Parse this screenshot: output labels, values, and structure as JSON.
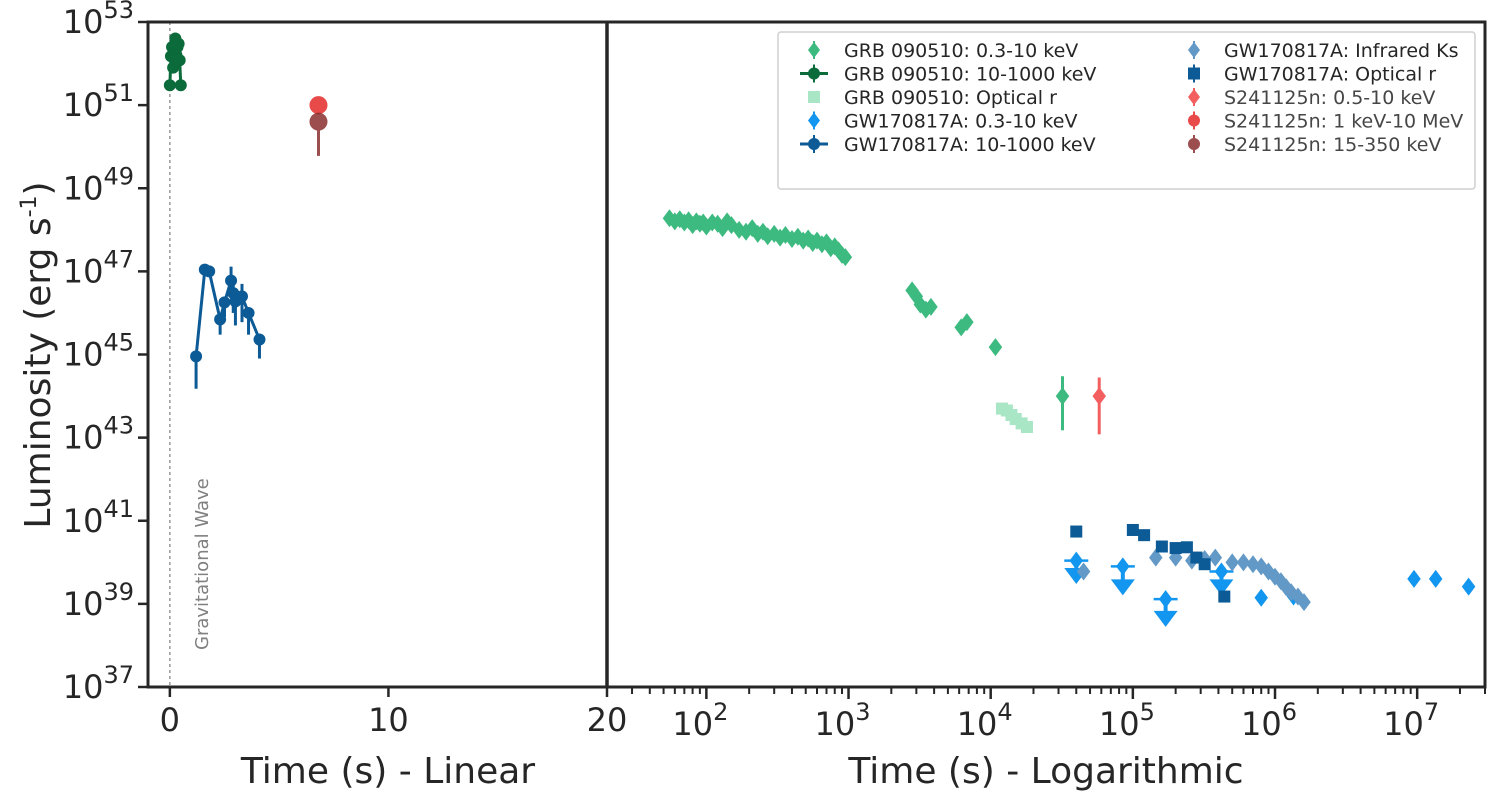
{
  "chart_data": {
    "type": "scatter",
    "ylabel": "Luminosity (erg s",
    "ylabel_exp": "-1",
    "ylabel_close": ")",
    "ylim": [
      1e+37,
      1e+53
    ],
    "yscale": "log",
    "yticks": [
      {
        "base": "10",
        "exp": "53"
      },
      {
        "base": "10",
        "exp": "51"
      },
      {
        "base": "10",
        "exp": "49"
      },
      {
        "base": "10",
        "exp": "47"
      },
      {
        "base": "10",
        "exp": "45"
      },
      {
        "base": "10",
        "exp": "43"
      },
      {
        "base": "10",
        "exp": "41"
      },
      {
        "base": "10",
        "exp": "39"
      },
      {
        "base": "10",
        "exp": "37"
      }
    ],
    "left_panel": {
      "xlabel": "Time (s) - Linear",
      "xlim": [
        -1,
        20
      ],
      "xticks": [
        "0",
        "10",
        "20"
      ],
      "vline_x": 0,
      "vline_label": "Gravitational Wave"
    },
    "right_panel": {
      "xlabel": "Time (s) - Logarithmic",
      "xlim": [
        20,
        30000000
      ],
      "xscale": "log",
      "xticks": [
        {
          "base": "10",
          "exp": "2"
        },
        {
          "base": "10",
          "exp": "3"
        },
        {
          "base": "10",
          "exp": "4"
        },
        {
          "base": "10",
          "exp": "5"
        },
        {
          "base": "10",
          "exp": "6"
        },
        {
          "base": "10",
          "exp": "7"
        }
      ]
    },
    "series": [
      {
        "name": "GRB 090510: 0.3-10 keV",
        "color": "#3dba80",
        "marker": "diamond",
        "panel": "log",
        "x": [
          55,
          60,
          65,
          70,
          75,
          80,
          85,
          90,
          95,
          100,
          110,
          120,
          130,
          140,
          150,
          170,
          190,
          210,
          230,
          250,
          270,
          300,
          330,
          360,
          400,
          440,
          480,
          520,
          560,
          600,
          650,
          700,
          750,
          800,
          850,
          900,
          950,
          2800,
          3000,
          3200,
          3500,
          3800,
          6200,
          6800,
          10800,
          32000
        ],
        "y": [
          1.9e+48,
          1.6e+48,
          1.8e+48,
          1.5e+48,
          1.7e+48,
          1.3e+48,
          1.6e+48,
          1.4e+48,
          1.5e+48,
          1.2e+48,
          1.5e+48,
          1.4e+48,
          1.1e+48,
          1.6e+48,
          1.3e+48,
          1e+48,
          9e+47,
          1.1e+48,
          8e+47,
          9e+47,
          7e+47,
          8e+47,
          6.5e+47,
          7.5e+47,
          6e+47,
          6.8e+47,
          5.5e+47,
          6.2e+47,
          4.8e+47,
          5.5e+47,
          4.5e+47,
          5e+47,
          3.6e+47,
          4e+47,
          3.2e+47,
          2.5e+47,
          2.2e+47,
          3.5e+46,
          2.5e+46,
          1.6e+46,
          1.2e+46,
          1.4e+46,
          4.5e+45,
          6e+45,
          1.5e+45,
          1e+44
        ],
        "ylo": [
          null,
          null,
          null,
          null,
          null,
          null,
          null,
          null,
          null,
          null,
          null,
          null,
          null,
          null,
          null,
          null,
          null,
          null,
          null,
          null,
          null,
          null,
          null,
          null,
          null,
          null,
          null,
          null,
          null,
          null,
          null,
          null,
          null,
          null,
          null,
          null,
          null,
          null,
          null,
          null,
          null,
          null,
          null,
          null,
          null,
          1.5e+43
        ],
        "yhi": [
          null,
          null,
          null,
          null,
          null,
          null,
          null,
          null,
          null,
          null,
          null,
          null,
          null,
          null,
          null,
          null,
          null,
          null,
          null,
          null,
          null,
          null,
          null,
          null,
          null,
          null,
          null,
          null,
          null,
          null,
          null,
          null,
          null,
          null,
          null,
          null,
          null,
          null,
          null,
          null,
          null,
          null,
          null,
          null,
          null,
          3e+44
        ]
      },
      {
        "name": "GRB 090510: 10-1000 keV",
        "color": "#0b6b3a",
        "marker": "circle",
        "panel": "linear",
        "x": [
          0.0,
          0.05,
          0.1,
          0.15,
          0.2,
          0.25,
          0.3,
          0.35,
          0.4,
          0.45,
          0.5
        ],
        "y": [
          3e+51,
          1.5e+52,
          2.5e+52,
          8e+51,
          1.8e+52,
          4e+52,
          1.6e+52,
          2.5e+52,
          3e+52,
          1.2e+52,
          3e+51
        ],
        "ylo": [
          null,
          null,
          null,
          null,
          null,
          null,
          null,
          null,
          null,
          null,
          null
        ],
        "yhi": [
          null,
          null,
          null,
          null,
          null,
          null,
          null,
          null,
          null,
          null,
          null
        ]
      },
      {
        "name": "GRB 090510: Optical r",
        "color": "#a8e6c6",
        "marker": "square",
        "panel": "log",
        "x": [
          12000,
          13000,
          14000,
          15000,
          16500,
          18000
        ],
        "y": [
          5e+43,
          4.5e+43,
          3.5e+43,
          2.8e+43,
          2.2e+43,
          1.8e+43
        ],
        "ylo": [
          null,
          null,
          null,
          null,
          null,
          null
        ],
        "yhi": [
          null,
          null,
          null,
          null,
          null,
          null
        ]
      },
      {
        "name": "GW170817A: 0.3-10 keV",
        "color": "#1296f0",
        "marker": "diamond",
        "panel": "log",
        "x": [
          40000,
          85000,
          170000,
          420000,
          800000,
          1350000,
          9500000,
          13500000,
          23000000
        ],
        "y": [
          1.1e+40,
          8e+39,
          1.3e+39,
          6e+39,
          1.4e+39,
          1.5e+39,
          4e+39,
          4e+39,
          2.6e+39
        ],
        "ylo": [
          3e+39,
          1.6e+39,
          2.8e+38,
          1.6e+39,
          null,
          null,
          null,
          null,
          null
        ],
        "yhi": [
          null,
          null,
          null,
          null,
          null,
          null,
          null,
          null,
          null
        ],
        "upper_limit": [
          true,
          true,
          true,
          true,
          false,
          false,
          false,
          false,
          false
        ]
      },
      {
        "name": "GW170817A: 10-1000 keV",
        "color": "#0c5a96",
        "marker": "circle",
        "panel": "linear",
        "x": [
          1.2,
          1.6,
          1.8,
          2.3,
          2.5,
          2.8,
          2.9,
          3.0,
          3.3,
          3.6,
          4.1
        ],
        "y": [
          9e+44,
          1.1e+47,
          1e+47,
          7e+45,
          1.8e+46,
          6e+46,
          3e+46,
          1.9e+46,
          2.5e+46,
          1e+46,
          2.3e+45
        ],
        "ylo": [
          1.5e+44,
          null,
          null,
          3e+45,
          8e+45,
          2.5e+46,
          1e+46,
          5e+45,
          6e+45,
          3e+45,
          8e+44
        ],
        "yhi": [
          null,
          null,
          null,
          null,
          null,
          1.3e+47,
          6e+46,
          null,
          5e+46,
          null,
          null
        ]
      },
      {
        "name": "GW170817A: Infrared Ks",
        "color": "#6399c6",
        "marker": "diamond",
        "panel": "log",
        "x": [
          45000,
          145000,
          200000,
          260000,
          320000,
          380000,
          500000,
          600000,
          700000,
          800000,
          900000,
          1000000,
          1100000,
          1200000,
          1300000,
          1450000,
          1600000
        ],
        "y": [
          6e+39,
          1.3e+40,
          1.3e+40,
          1.1e+40,
          1.2e+40,
          1.3e+40,
          1e+40,
          1e+40,
          9e+39,
          8e+39,
          6e+39,
          4.5e+39,
          3.5e+39,
          2.5e+39,
          1.9e+39,
          1.5e+39,
          1.1e+39
        ],
        "ylo": [
          null,
          null,
          null,
          null,
          null,
          null,
          null,
          null,
          null,
          null,
          null,
          null,
          null,
          null,
          null,
          null,
          null
        ],
        "yhi": [
          null,
          null,
          null,
          null,
          null,
          null,
          null,
          null,
          null,
          null,
          null,
          null,
          null,
          null,
          null,
          null,
          null
        ]
      },
      {
        "name": "GW170817A: Optical r",
        "color": "#0c5a96",
        "marker": "square",
        "panel": "log",
        "x": [
          40000,
          100000,
          120000,
          160000,
          200000,
          240000,
          280000,
          320000,
          440000
        ],
        "y": [
          5.5e+40,
          6e+40,
          4.5e+40,
          2.4e+40,
          2.2e+40,
          2.3e+40,
          1.3e+40,
          9e+39,
          1.5e+39
        ],
        "ylo": [
          null,
          null,
          null,
          null,
          null,
          null,
          null,
          null,
          null
        ],
        "yhi": [
          null,
          null,
          null,
          null,
          null,
          null,
          null,
          null,
          null
        ]
      },
      {
        "name": "S241125n: 0.5-10 keV",
        "color": "#f24444",
        "marker": "diamond",
        "panel": "log",
        "x": [
          58000
        ],
        "y": [
          1e+44
        ],
        "ylo": [
          1.2e+43
        ],
        "yhi": [
          2.8e+44
        ]
      },
      {
        "name": "S241125n: 1 keV-10 MeV",
        "color": "#e52b2b",
        "marker": "circle",
        "panel": "linear",
        "x": [
          6.8
        ],
        "y": [
          1e+51
        ],
        "ylo": [
          6e+50
        ],
        "yhi": [
          1.4e+51
        ]
      },
      {
        "name": "S241125n: 15-350 keV",
        "color": "#8b2e2e",
        "marker": "circle",
        "panel": "linear",
        "x": [
          6.8
        ],
        "y": [
          4e+50
        ],
        "ylo": [
          6e+49
        ],
        "yhi": [
          null
        ]
      }
    ]
  }
}
